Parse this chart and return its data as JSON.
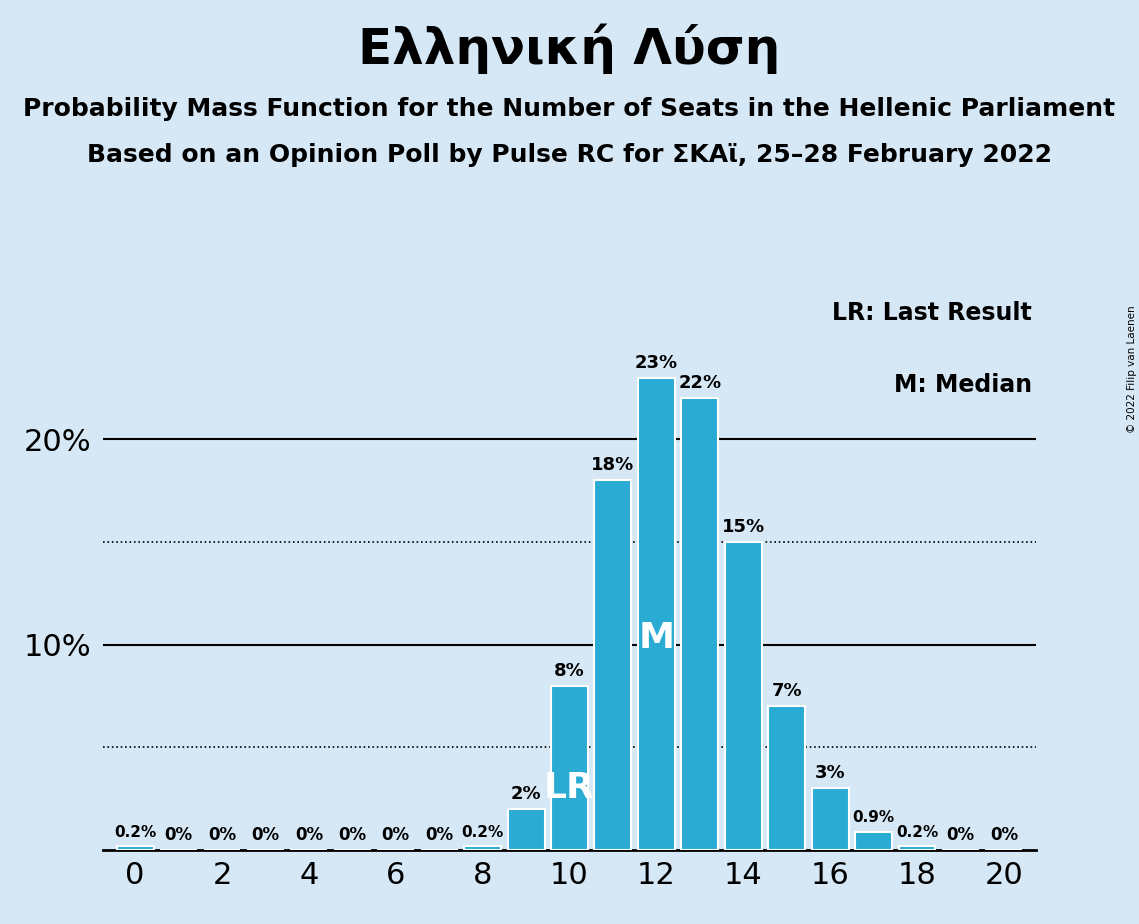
{
  "title": "Ελληνική Λύση",
  "subtitle1": "Probability Mass Function for the Number of Seats in the Hellenic Parliament",
  "subtitle2": "Based on an Opinion Poll by Pulse RC for ΣΚΑϊ, 25–28 February 2022",
  "legend_lr": "LR: Last Result",
  "legend_m": "M: Median",
  "copyright": "© 2022 Filip van Laenen",
  "seats": [
    0,
    1,
    2,
    3,
    4,
    5,
    6,
    7,
    8,
    9,
    10,
    11,
    12,
    13,
    14,
    15,
    16,
    17,
    18,
    19,
    20
  ],
  "probabilities": [
    0.2,
    0.0,
    0.0,
    0.0,
    0.0,
    0.0,
    0.0,
    0.0,
    0.2,
    2.0,
    8.0,
    18.0,
    23.0,
    22.0,
    15.0,
    7.0,
    3.0,
    0.9,
    0.2,
    0.0,
    0.0
  ],
  "bar_color": "#29ABD4",
  "bg_color": "#D6E8F5",
  "text_color": "#000000",
  "median_seat": 12,
  "lr_seat": 10,
  "yticks": [
    10,
    20
  ],
  "dotted_lines": [
    5,
    15
  ],
  "ylim": [
    0,
    27
  ],
  "bar_label_fontsize": 13,
  "annotation_fontsize": 26,
  "legend_fontsize": 17,
  "title_fontsize": 36,
  "subtitle_fontsize": 18,
  "tick_fontsize": 22
}
